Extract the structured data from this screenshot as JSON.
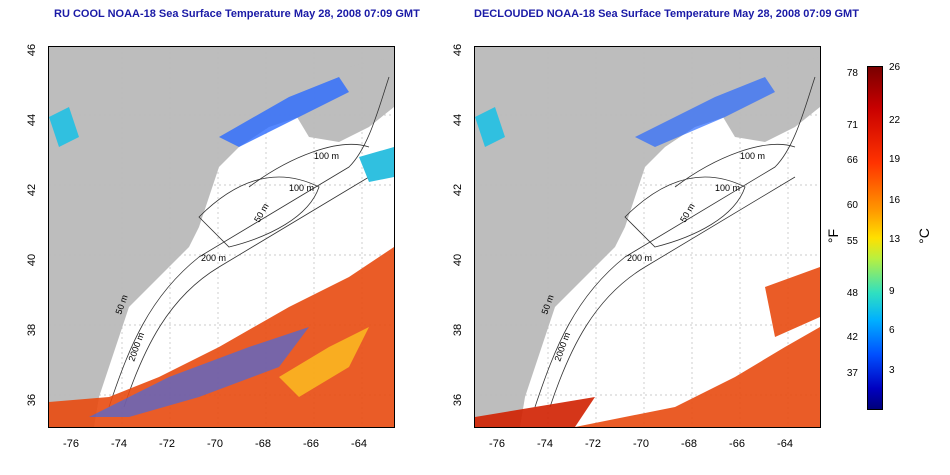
{
  "titles": {
    "left": "RU COOL NOAA-18 Sea Surface Temperature May 28, 2008 07:09 GMT",
    "right": "DECLOUDED NOAA-18 Sea Surface Temperature May 28, 2008 07:09 GMT"
  },
  "axes": {
    "lat_ticks": [
      "46",
      "44",
      "42",
      "40",
      "38",
      "36"
    ],
    "lon_ticks": [
      "-76",
      "-74",
      "-72",
      "-70",
      "-68",
      "-66",
      "-64"
    ]
  },
  "contour_labels": [
    "100 m",
    "100 m",
    "50 m",
    "200 m",
    "50 m",
    "2000 m"
  ],
  "colorbar": {
    "f_label": "°F",
    "c_label": "°C",
    "f_ticks": [
      "78",
      "71",
      "66",
      "60",
      "55",
      "48",
      "42",
      "37"
    ],
    "c_ticks": [
      "26",
      "22",
      "19",
      "16",
      "13",
      "9",
      "6",
      "3"
    ]
  },
  "colors": {
    "land": "#bdbdbd",
    "title": "#1a1aa6",
    "warm": "#e84a10",
    "cool": "#2a6aff"
  }
}
